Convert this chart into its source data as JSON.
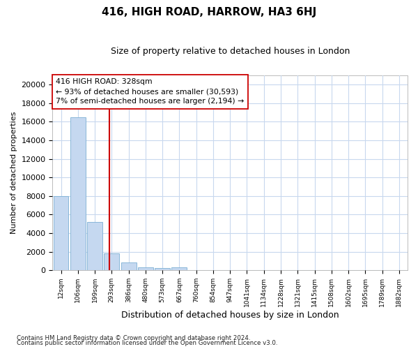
{
  "title": "416, HIGH ROAD, HARROW, HA3 6HJ",
  "subtitle": "Size of property relative to detached houses in London",
  "xlabel": "Distribution of detached houses by size in London",
  "ylabel": "Number of detached properties",
  "footnote1": "Contains HM Land Registry data © Crown copyright and database right 2024.",
  "footnote2": "Contains public sector information licensed under the Open Government Licence v3.0.",
  "annotation_line1": "416 HIGH ROAD: 328sqm",
  "annotation_line2": "← 93% of detached houses are smaller (30,593)",
  "annotation_line3": "7% of semi-detached houses are larger (2,194) →",
  "bar_color": "#c5d8f0",
  "bar_edge_color": "#7bafd4",
  "vline_color": "#cc0000",
  "annotation_box_color": "#ffffff",
  "annotation_box_edge": "#cc0000",
  "tick_labels": [
    "12sqm",
    "106sqm",
    "199sqm",
    "293sqm",
    "386sqm",
    "480sqm",
    "573sqm",
    "667sqm",
    "760sqm",
    "854sqm",
    "947sqm",
    "1041sqm",
    "1134sqm",
    "1228sqm",
    "1321sqm",
    "1415sqm",
    "1508sqm",
    "1602sqm",
    "1695sqm",
    "1789sqm",
    "1882sqm"
  ],
  "bar_values": [
    8000,
    16500,
    5200,
    1800,
    800,
    300,
    200,
    300,
    0,
    0,
    0,
    0,
    0,
    0,
    0,
    0,
    0,
    0,
    0,
    0,
    0
  ],
  "ylim": [
    0,
    21000
  ],
  "yticks": [
    0,
    2000,
    4000,
    6000,
    8000,
    10000,
    12000,
    14000,
    16000,
    18000,
    20000
  ],
  "background_color": "#ffffff",
  "grid_color": "#c8d8ee",
  "vline_x_index": 2.85
}
